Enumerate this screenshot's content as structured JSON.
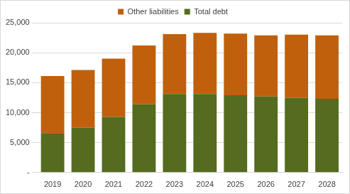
{
  "chart_data": {
    "type": "bar",
    "stacked": true,
    "legend": "top",
    "grid": true,
    "categories": [
      "2019",
      "2020",
      "2021",
      "2022",
      "2023",
      "2024",
      "2025",
      "2026",
      "2027",
      "2028"
    ],
    "series": [
      {
        "name": "Other liabilities",
        "color": "#c0600c",
        "values": [
          9500,
          9600,
          9700,
          9800,
          10000,
          10200,
          10300,
          10200,
          10500,
          10600
        ]
      },
      {
        "name": "Total debt",
        "color": "#556b1f",
        "values": [
          6600,
          7500,
          9300,
          11400,
          13100,
          13100,
          12900,
          12700,
          12500,
          12300
        ]
      }
    ],
    "ylim": [
      0,
      25000
    ],
    "yticks": [
      {
        "value": 0,
        "label": "-"
      },
      {
        "value": 5000,
        "label": "5,000"
      },
      {
        "value": 10000,
        "label": "10,000"
      },
      {
        "value": 15000,
        "label": "15,000"
      },
      {
        "value": 20000,
        "label": "20,000"
      },
      {
        "value": 25000,
        "label": "25,000"
      }
    ]
  }
}
